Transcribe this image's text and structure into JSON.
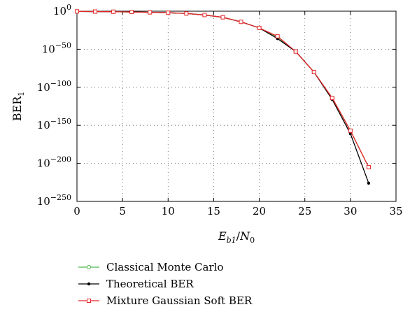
{
  "chart_data": {
    "type": "line",
    "xlabel": "E_b1/N_0",
    "ylabel": "BER_1",
    "xlim": [
      0,
      35
    ],
    "ylim_log10": [
      -250,
      0
    ],
    "y_scale": "log",
    "grid": true,
    "grid_style": "dotted",
    "legend_position": "below",
    "x_ticks": [
      0,
      5,
      10,
      15,
      20,
      25,
      30,
      35
    ],
    "y_ticks_exponent": [
      0,
      -50,
      -100,
      -150,
      -200,
      -250
    ],
    "series": [
      {
        "name": "Classical Monte Carlo",
        "color": "#4fb84f",
        "marker": "circle-open",
        "x": [
          0,
          2,
          4,
          6,
          8,
          10,
          12,
          14,
          16,
          18,
          20,
          22,
          24,
          26,
          28,
          30,
          32
        ],
        "log10_y": [
          -0.3,
          -0.5,
          -0.7,
          -1,
          -1.5,
          -2,
          -3,
          -5,
          -8,
          -14,
          -22,
          -34,
          -53,
          -80,
          -114,
          -157,
          -205
        ]
      },
      {
        "name": "Theoretical BER",
        "color": "#000000",
        "marker": "dot",
        "x": [
          0,
          2,
          4,
          6,
          8,
          10,
          12,
          14,
          16,
          18,
          20,
          22,
          24,
          26,
          28,
          30,
          32
        ],
        "log10_y": [
          -0.3,
          -0.5,
          -0.7,
          -1,
          -1.5,
          -2,
          -3,
          -5,
          -8,
          -14,
          -22,
          -36,
          -53,
          -80,
          -116,
          -161,
          -226
        ]
      },
      {
        "name": "Mixture Gaussian Soft BER",
        "color": "#e8262a",
        "marker": "square-open",
        "x": [
          0,
          2,
          4,
          6,
          8,
          10,
          12,
          14,
          16,
          18,
          20,
          22,
          24,
          26,
          28,
          30,
          32
        ],
        "log10_y": [
          -0.3,
          -0.5,
          -0.7,
          -1,
          -1.5,
          -2,
          -3,
          -5,
          -8,
          -14,
          -22,
          -33,
          -53,
          -80,
          -114,
          -157,
          -205
        ]
      }
    ]
  }
}
